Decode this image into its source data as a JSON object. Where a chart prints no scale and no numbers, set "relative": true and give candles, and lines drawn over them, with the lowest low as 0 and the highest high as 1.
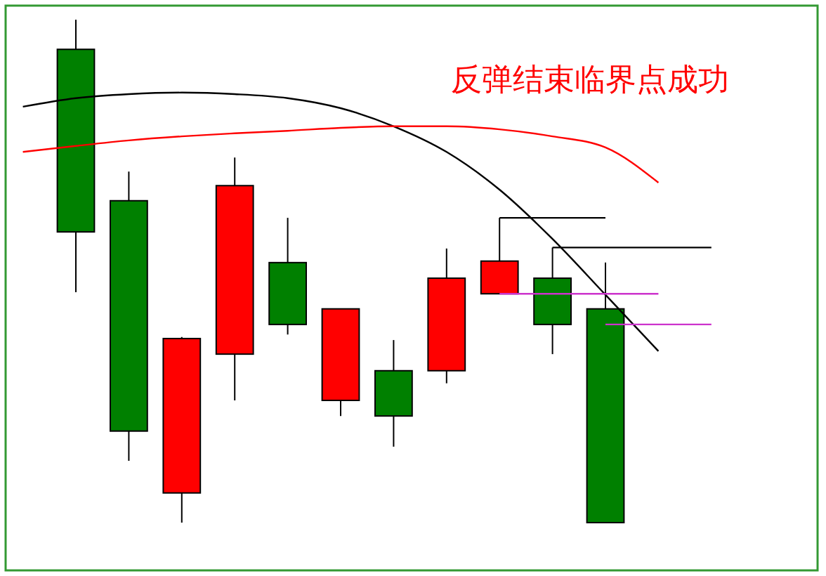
{
  "chart_data": {
    "type": "candlestick",
    "title": "反弹结束临界点成功",
    "relative": true,
    "categories": [
      null,
      null,
      null,
      null,
      null,
      null,
      null,
      null,
      null,
      null,
      null,
      null,
      null,
      null
    ],
    "ohlc": [
      null,
      [
        0.941,
        1.0,
        0.458,
        0.578
      ],
      [
        0.64,
        0.698,
        0.123,
        0.182
      ],
      [
        0.059,
        0.369,
        0,
        0.366
      ],
      [
        0.335,
        0.726,
        0.243,
        0.67
      ],
      [
        0.517,
        0.606,
        0.374,
        0.394
      ],
      [
        0.243,
        0.425,
        0.212,
        0.425
      ],
      [
        0.302,
        0.363,
        0.151,
        0.212
      ],
      [
        0.302,
        0.545,
        0.277,
        0.486
      ],
      [
        0.455,
        0.606,
        0.455,
        0.52
      ],
      [
        0.486,
        0.547,
        0.335,
        0.394
      ],
      [
        0.425,
        0.517,
        0,
        0
      ],
      null,
      null
    ],
    "colors": [
      null,
      "#008000",
      "#008000",
      "#ff0000",
      "#ff0000",
      "#008000",
      "#ff0000",
      "#008000",
      "#ff0000",
      "#ff0000",
      "#008000",
      "#008000",
      null,
      null
    ],
    "series": [
      {
        "type": "line",
        "color": "#000000",
        "values": [
          0.827,
          0.844,
          0.852,
          0.855,
          0.852,
          0.844,
          0.824,
          0.788,
          0.737,
          0.662,
          0.564,
          0.453,
          0.341,
          null
        ]
      },
      {
        "type": "line",
        "color": "#ff0000",
        "values": [
          0.737,
          0.749,
          0.76,
          0.768,
          0.774,
          0.779,
          0.785,
          0.788,
          0.788,
          0.782,
          0.768,
          0.746,
          0.676,
          null
        ]
      },
      {
        "type": "line",
        "color": "#000000",
        "values": [
          null,
          null,
          null,
          null,
          null,
          null,
          null,
          null,
          null,
          0.606,
          0.606,
          0.606,
          null,
          null
        ]
      },
      {
        "type": "line",
        "color": "#000000",
        "values": [
          null,
          null,
          null,
          null,
          null,
          null,
          null,
          null,
          null,
          null,
          0.547,
          0.547,
          0.547,
          0.547
        ]
      },
      {
        "type": "line",
        "color": "#cc33cc",
        "values": [
          null,
          null,
          null,
          null,
          null,
          null,
          null,
          null,
          null,
          0.455,
          0.455,
          0.455,
          0.455,
          null
        ]
      },
      {
        "type": "line",
        "color": "#cc33cc",
        "values": [
          null,
          null,
          null,
          null,
          null,
          null,
          null,
          null,
          null,
          null,
          null,
          0.394,
          0.394,
          0.394
        ]
      }
    ]
  }
}
